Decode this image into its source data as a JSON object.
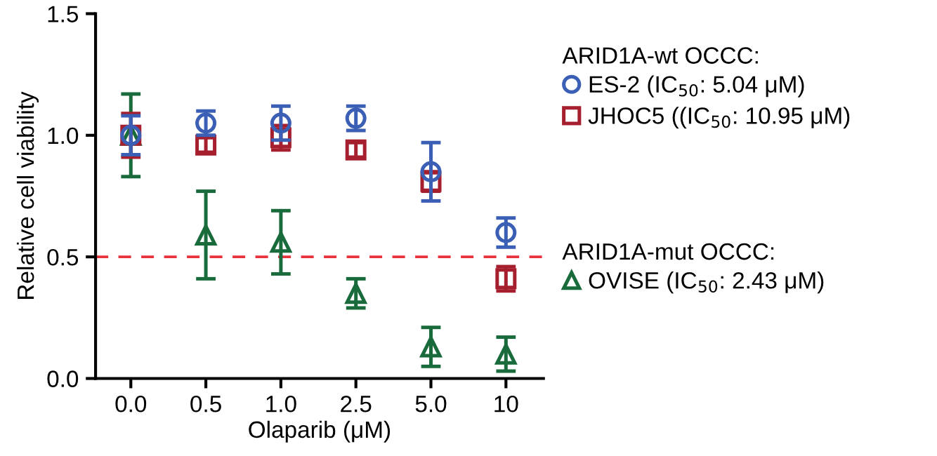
{
  "chart_data": {
    "type": "scatter",
    "xlabel": "Olaparib (μM)",
    "ylabel": "Relative cell viability",
    "categories": [
      "0.0",
      "0.5",
      "1.0",
      "2.5",
      "5.0",
      "10"
    ],
    "series": [
      {
        "name": "ES-2 (IC$_{50}$: 5.04 μM)",
        "color": "#3a5fb4",
        "marker": "circle",
        "values": [
          1.0,
          1.05,
          1.05,
          1.07,
          0.85,
          0.6
        ],
        "errors": [
          0.08,
          0.05,
          0.07,
          0.05,
          0.12,
          0.06
        ]
      },
      {
        "name": "JHOC5 ((IC$_{50}$: 10.95 μM)",
        "color": "#a61f2e",
        "marker": "square",
        "values": [
          1.0,
          0.96,
          0.99,
          0.94,
          0.81,
          0.41
        ],
        "errors": [
          0.09,
          0.03,
          0.05,
          0.03,
          0.04,
          0.05
        ]
      },
      {
        "name": "OVISE (IC$_{50}$: 2.43 μM)",
        "color": "#1a6b3c",
        "marker": "triangle",
        "values": [
          1.0,
          0.59,
          0.56,
          0.35,
          0.13,
          0.1
        ],
        "errors": [
          0.17,
          0.18,
          0.13,
          0.06,
          0.08,
          0.07
        ]
      }
    ],
    "annotations": [
      "ARID1A-wt OCCC:",
      "ARID1A-mut OCCC:"
    ],
    "ylim": [
      0,
      1.5
    ],
    "yticks": [
      {
        "value": 0,
        "label": "0.0"
      },
      {
        "value": 0.5,
        "label": "0.5"
      },
      {
        "value": 1,
        "label": "1.0"
      },
      {
        "value": 1.5,
        "label": "1.5"
      }
    ],
    "ref_lines": [
      {
        "axis": "y",
        "value": 0.5,
        "color": "#e8323c",
        "line_style": "dashed"
      }
    ],
    "legend": "right",
    "grid": false
  }
}
